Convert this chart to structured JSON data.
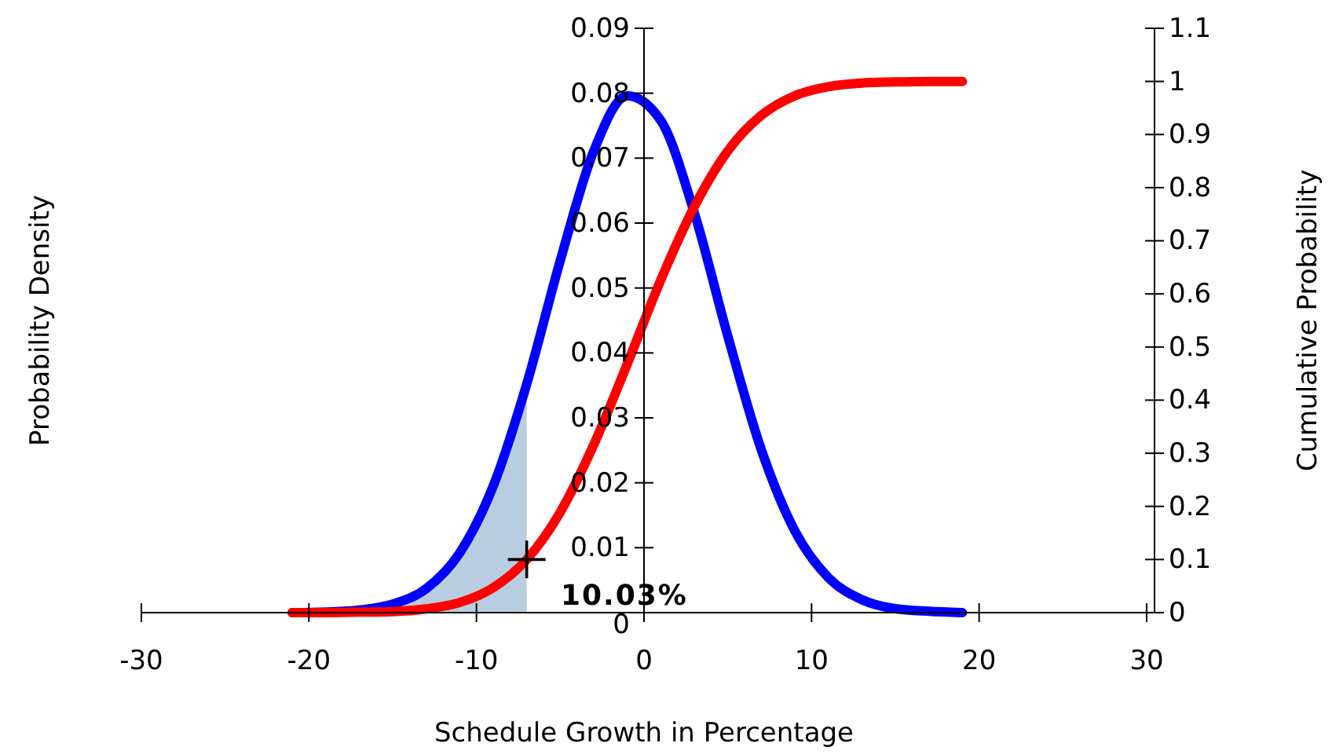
{
  "chart_data": {
    "type": "line",
    "xlabel": "Schedule Growth in Percentage",
    "ylabel": "Probability Density",
    "y2label": "Cumulative Probability",
    "xlim": [
      -30,
      30
    ],
    "xticks": [
      -30,
      -20,
      -10,
      0,
      10,
      20,
      30
    ],
    "ylim": [
      0,
      0.09
    ],
    "yticks": [
      0,
      0.01,
      0.02,
      0.03,
      0.04,
      0.05,
      0.06,
      0.07,
      0.08,
      0.09
    ],
    "y2lim": [
      0,
      1.1
    ],
    "y2ticks": [
      0,
      0.1,
      0.2,
      0.3,
      0.4,
      0.5,
      0.6,
      0.7,
      0.8,
      0.9,
      1,
      1.1
    ],
    "grid": false,
    "line_style": "solid",
    "annotations": [
      "10.03%"
    ],
    "series": [
      {
        "type": "area",
        "color": "#b9cde0",
        "x": [
          -21,
          -19,
          -17,
          -15,
          -13,
          -11,
          -9,
          -7
        ],
        "values": [
          0,
          0.0001,
          0.0004,
          0.0013,
          0.0037,
          0.0092,
          0.0195,
          0.0352
        ]
      },
      {
        "color": "#0000ff",
        "x": [
          -21,
          -19,
          -17,
          -15,
          -13,
          -11,
          -9,
          -7,
          -5,
          -3,
          -1,
          1,
          3,
          5,
          7,
          9,
          11,
          13,
          15,
          17,
          19
        ],
        "values": [
          0,
          0.0001,
          0.0004,
          0.0013,
          0.0037,
          0.0092,
          0.0195,
          0.0352,
          0.0542,
          0.0711,
          0.0796,
          0.0758,
          0.0616,
          0.0426,
          0.0251,
          0.0126,
          0.0054,
          0.002,
          0.0006,
          0.0002,
          0
        ]
      },
      {
        "color": "#ff0000",
        "axis": "y2",
        "x": [
          -21,
          -19,
          -17,
          -15,
          -13,
          -11,
          -9,
          -7,
          -5,
          -3,
          -1,
          1,
          3,
          5,
          7,
          9,
          11,
          13,
          15,
          17,
          19
        ],
        "values": [
          0,
          0,
          0.001,
          0.002,
          0.007,
          0.019,
          0.047,
          0.1,
          0.189,
          0.316,
          0.468,
          0.626,
          0.764,
          0.869,
          0.936,
          0.973,
          0.99,
          0.997,
          0.999,
          1,
          1
        ]
      },
      {
        "type": "scatter",
        "color": "#000000",
        "axis": "y2",
        "marker": "cross",
        "x": [
          -7
        ],
        "values": [
          0.1
        ]
      }
    ]
  }
}
